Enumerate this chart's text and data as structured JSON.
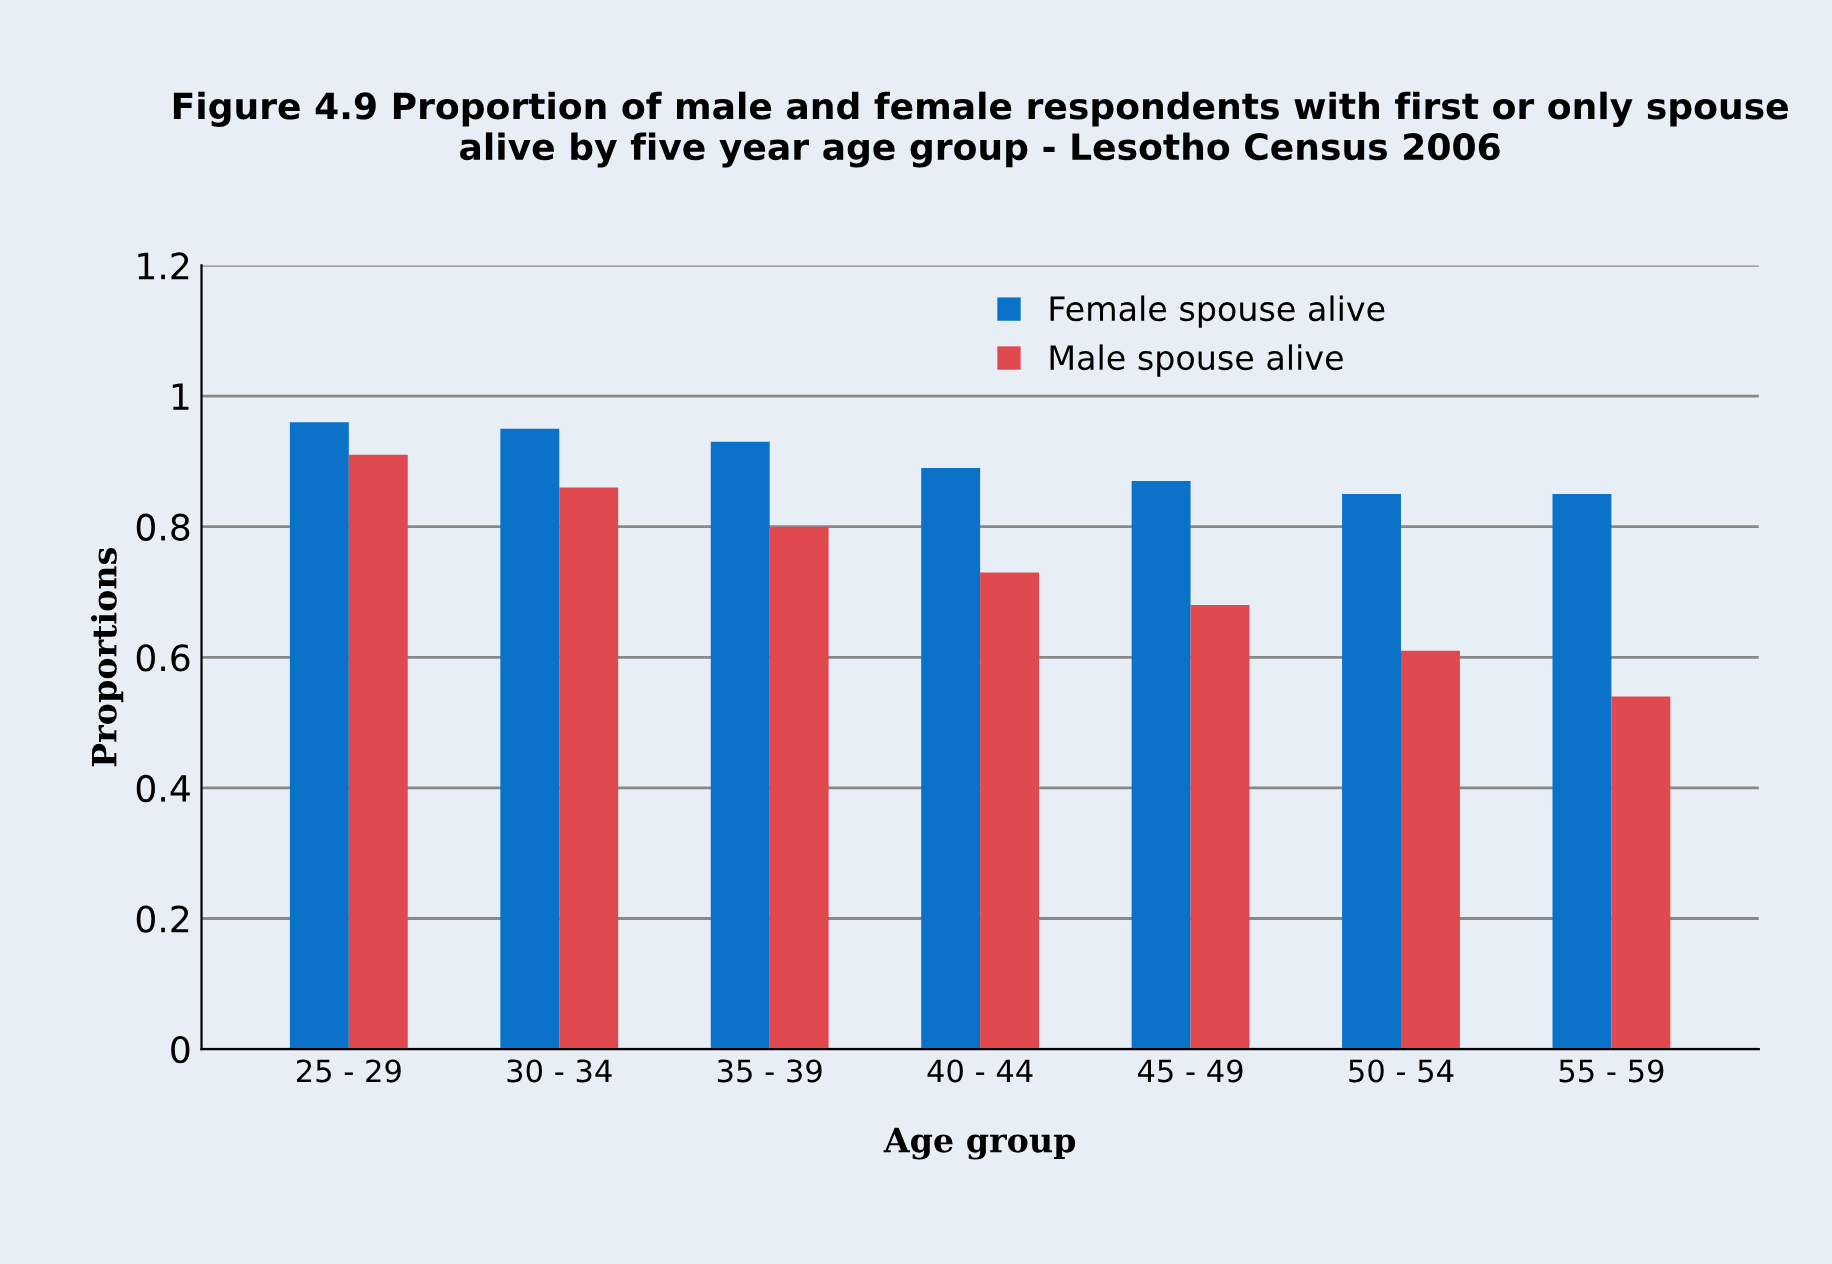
{
  "chart_data": {
    "type": "bar",
    "title": "Figure 4.9 Proportion of male and female respondents with first or only spouse alive by five year age group - Lesotho Census 2006",
    "xlabel": "Age group",
    "ylabel": "Proportions",
    "categories": [
      "25 - 29",
      "30 - 34",
      "35 - 39",
      "40 - 44",
      "45 - 49",
      "50 - 54",
      "55 - 59"
    ],
    "series": [
      {
        "name": "Female spouse alive",
        "color": "#0a72c8",
        "values": [
          0.96,
          0.95,
          0.93,
          0.89,
          0.87,
          0.85,
          0.85
        ]
      },
      {
        "name": "Male spouse alive",
        "color": "#e04a4e",
        "values": [
          0.91,
          0.86,
          0.8,
          0.73,
          0.68,
          0.61,
          0.54
        ]
      }
    ],
    "ylim": [
      0,
      1.2
    ],
    "yticks": [
      0,
      0.2,
      0.4,
      0.6,
      0.8,
      1,
      1.2
    ],
    "grid": "y",
    "legend": "top right"
  }
}
